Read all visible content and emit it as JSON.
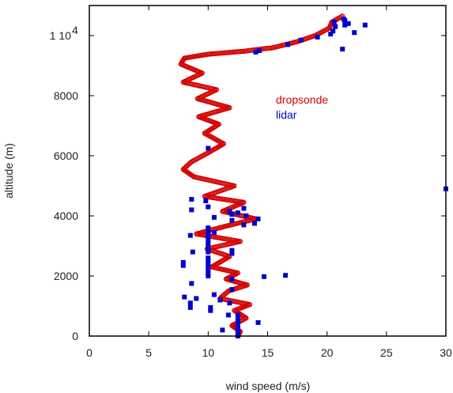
{
  "colors": {
    "dropsonde": "#d40000",
    "lidar": "#0000cc",
    "axis": "#000000"
  },
  "chart_data": {
    "type": "scatter",
    "xlabel": "wind speed (m/s)",
    "ylabel": "altitude (m)",
    "xlim": [
      0,
      30
    ],
    "ylim": [
      0,
      11000
    ],
    "xticks": [
      {
        "value": 0,
        "label": "0"
      },
      {
        "value": 5,
        "label": "5"
      },
      {
        "value": 10,
        "label": "10"
      },
      {
        "value": 15,
        "label": "15"
      },
      {
        "value": 20,
        "label": "20"
      },
      {
        "value": 25,
        "label": "25"
      },
      {
        "value": 30,
        "label": "30"
      }
    ],
    "yticks": [
      {
        "value": 0,
        "label": "0"
      },
      {
        "value": 2000,
        "label": "2000"
      },
      {
        "value": 4000,
        "label": "4000"
      },
      {
        "value": 6000,
        "label": "6000"
      },
      {
        "value": 8000,
        "label": "8000"
      },
      {
        "value": 10000,
        "label": "1 10"
      }
    ],
    "ytick_exponent": "4",
    "legend": {
      "placement": "upper-right inside plot"
    },
    "series": [
      {
        "name": "dropsonde",
        "marker": "open-circle",
        "profile": [
          [
            12.5,
            0
          ],
          [
            12.7,
            150
          ],
          [
            12.0,
            350
          ],
          [
            13.2,
            600
          ],
          [
            12.2,
            850
          ],
          [
            13.5,
            1050
          ],
          [
            11.0,
            1250
          ],
          [
            11.7,
            1500
          ],
          [
            13.3,
            1700
          ],
          [
            11.5,
            1900
          ],
          [
            12.5,
            2100
          ],
          [
            10.3,
            2300
          ],
          [
            11.8,
            2650
          ],
          [
            9.9,
            2900
          ],
          [
            12.7,
            3150
          ],
          [
            9.0,
            3400
          ],
          [
            11.4,
            3650
          ],
          [
            14.0,
            3900
          ],
          [
            11.2,
            4150
          ],
          [
            13.0,
            4450
          ],
          [
            9.7,
            4650
          ],
          [
            12.2,
            5000
          ],
          [
            8.8,
            5300
          ],
          [
            7.9,
            5550
          ],
          [
            8.6,
            5800
          ],
          [
            10.0,
            6100
          ],
          [
            11.3,
            6400
          ],
          [
            9.7,
            6750
          ],
          [
            10.9,
            7050
          ],
          [
            9.2,
            7300
          ],
          [
            11.8,
            7600
          ],
          [
            9.1,
            7900
          ],
          [
            10.7,
            8200
          ],
          [
            7.9,
            8450
          ],
          [
            9.5,
            8750
          ],
          [
            7.7,
            9050
          ],
          [
            8.0,
            9250
          ],
          [
            10.0,
            9380
          ],
          [
            13.0,
            9480
          ],
          [
            15.5,
            9600
          ],
          [
            17.5,
            9800
          ],
          [
            19.0,
            10000
          ],
          [
            20.2,
            10250
          ],
          [
            20.4,
            10450
          ],
          [
            21.3,
            10650
          ]
        ]
      },
      {
        "name": "lidar",
        "marker": "filled-square",
        "points": [
          [
            12.5,
            0
          ],
          [
            12.5,
            100
          ],
          [
            12.5,
            200
          ],
          [
            12.5,
            300
          ],
          [
            12.5,
            400
          ],
          [
            12.5,
            500
          ],
          [
            12.5,
            600
          ],
          [
            12.5,
            700
          ],
          [
            11.2,
            200
          ],
          [
            14.2,
            450
          ],
          [
            11.7,
            700
          ],
          [
            10.2,
            850
          ],
          [
            10.2,
            950
          ],
          [
            8.5,
            950
          ],
          [
            11.8,
            1100
          ],
          [
            8.5,
            1100
          ],
          [
            11.0,
            1200
          ],
          [
            9.0,
            1250
          ],
          [
            10.5,
            1380
          ],
          [
            8.0,
            1300
          ],
          [
            12.0,
            1550
          ],
          [
            8.6,
            1750
          ],
          [
            12.0,
            1900
          ],
          [
            14.7,
            1980
          ],
          [
            16.5,
            2020
          ],
          [
            10.0,
            2000
          ],
          [
            10.0,
            2100
          ],
          [
            10.0,
            2200
          ],
          [
            10.0,
            2300
          ],
          [
            7.9,
            2350
          ],
          [
            7.9,
            2450
          ],
          [
            10.0,
            2400
          ],
          [
            10.0,
            2500
          ],
          [
            10.0,
            2600
          ],
          [
            12.0,
            2750
          ],
          [
            12.0,
            2850
          ],
          [
            10.0,
            2800
          ],
          [
            10.0,
            2900
          ],
          [
            8.7,
            2800
          ],
          [
            10.0,
            3000
          ],
          [
            10.0,
            3100
          ],
          [
            10.0,
            3200
          ],
          [
            10.0,
            3300
          ],
          [
            8.5,
            3350
          ],
          [
            10.0,
            3400
          ],
          [
            10.0,
            3500
          ],
          [
            10.5,
            3450
          ],
          [
            10.0,
            3600
          ],
          [
            13.0,
            3700
          ],
          [
            13.9,
            3750
          ],
          [
            12.0,
            3850
          ],
          [
            14.2,
            3900
          ],
          [
            10.5,
            3950
          ],
          [
            13.2,
            4000
          ],
          [
            12.0,
            4050
          ],
          [
            12.5,
            4100
          ],
          [
            11.8,
            4150
          ],
          [
            13.0,
            4250
          ],
          [
            10.0,
            4300
          ],
          [
            8.6,
            4200
          ],
          [
            8.6,
            4550
          ],
          [
            9.8,
            4500
          ],
          [
            30.0,
            4900
          ],
          [
            10.0,
            6250
          ],
          [
            14.3,
            9500
          ],
          [
            14.0,
            9450
          ],
          [
            16.7,
            9700
          ],
          [
            17.8,
            9850
          ],
          [
            19.2,
            9950
          ],
          [
            20.3,
            10050
          ],
          [
            20.5,
            10150
          ],
          [
            20.7,
            10300
          ],
          [
            21.5,
            10350
          ],
          [
            21.3,
            9550
          ],
          [
            22.3,
            10100
          ],
          [
            23.2,
            10350
          ],
          [
            21.8,
            10400
          ],
          [
            21.4,
            10550
          ],
          [
            21.5,
            10500
          ],
          [
            20.6,
            10450
          ]
        ]
      }
    ]
  }
}
